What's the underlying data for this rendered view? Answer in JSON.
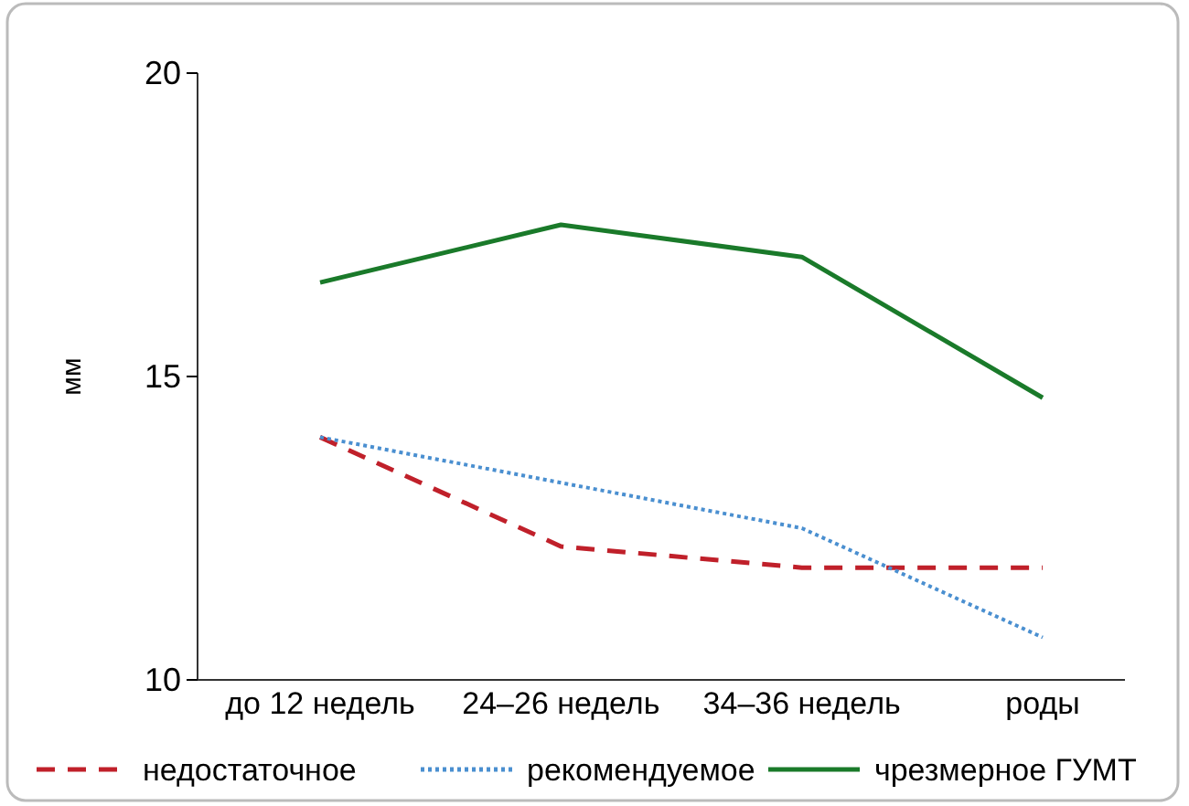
{
  "chart_data": {
    "type": "line",
    "ylabel": "мм",
    "categories": [
      "до 12 недель",
      "24–26 недель",
      "34–36 недель",
      "роды"
    ],
    "ylim": [
      10,
      20
    ],
    "yticks": [
      10,
      15,
      20
    ],
    "grid": false,
    "legend": "bottom",
    "tick_labels": "xy",
    "series": [
      {
        "name": "недостаточное",
        "color": "#c0202a",
        "line_style": "dashed",
        "values": [
          14.0,
          12.2,
          11.85,
          11.85
        ]
      },
      {
        "name": "рекомендуемое",
        "color": "#4a8fd0",
        "line_style": "dotted",
        "values": [
          14.0,
          13.25,
          12.5,
          10.7
        ]
      },
      {
        "name": "чрезмерное ГУМТ",
        "color": "#1a7a2a",
        "line_style": "solid",
        "values": [
          16.55,
          17.5,
          16.97,
          14.65
        ]
      }
    ]
  }
}
